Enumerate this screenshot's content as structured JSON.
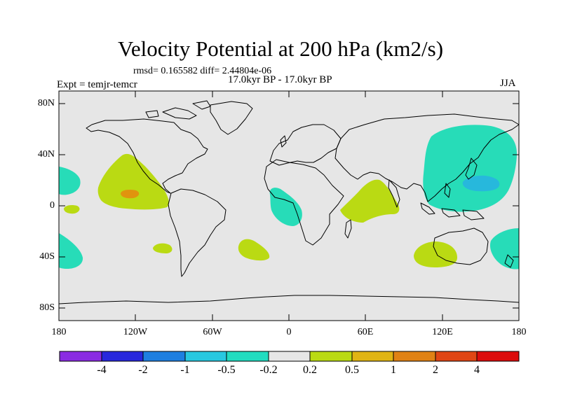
{
  "title": "Velocity Potential at 200 hPa (km2/s)",
  "stats_line": "rmsd= 0.165582 diff= 2.44804e-06",
  "period_line": "17.0kyr BP - 17.0kyr BP",
  "expt_line": "Expt = temjr-temcr",
  "season": "JJA",
  "colors": {
    "background_gray": "#e6e6e6",
    "coast": "#000000",
    "cyan": "#27dcb8",
    "lime": "#bada13",
    "blue": "#27b8dc",
    "orange": "#e0940e"
  },
  "lat_labels": [
    "80N",
    "40N",
    "0",
    "40S",
    "80S"
  ],
  "lon_labels": [
    "180",
    "120W",
    "60W",
    "0",
    "60E",
    "120E",
    "180"
  ],
  "colorbar": {
    "colors": [
      "#8a2be2",
      "#2828dc",
      "#1e7fe0",
      "#28c8e0",
      "#22dcc0",
      "#e6e6e6",
      "#bada13",
      "#e0b414",
      "#e08214",
      "#e04614",
      "#dc0c0c"
    ],
    "labels": [
      "-4",
      "-2",
      "-1",
      "-0.5",
      "-0.2",
      "0.2",
      "0.5",
      "1",
      "2",
      "4"
    ]
  }
}
